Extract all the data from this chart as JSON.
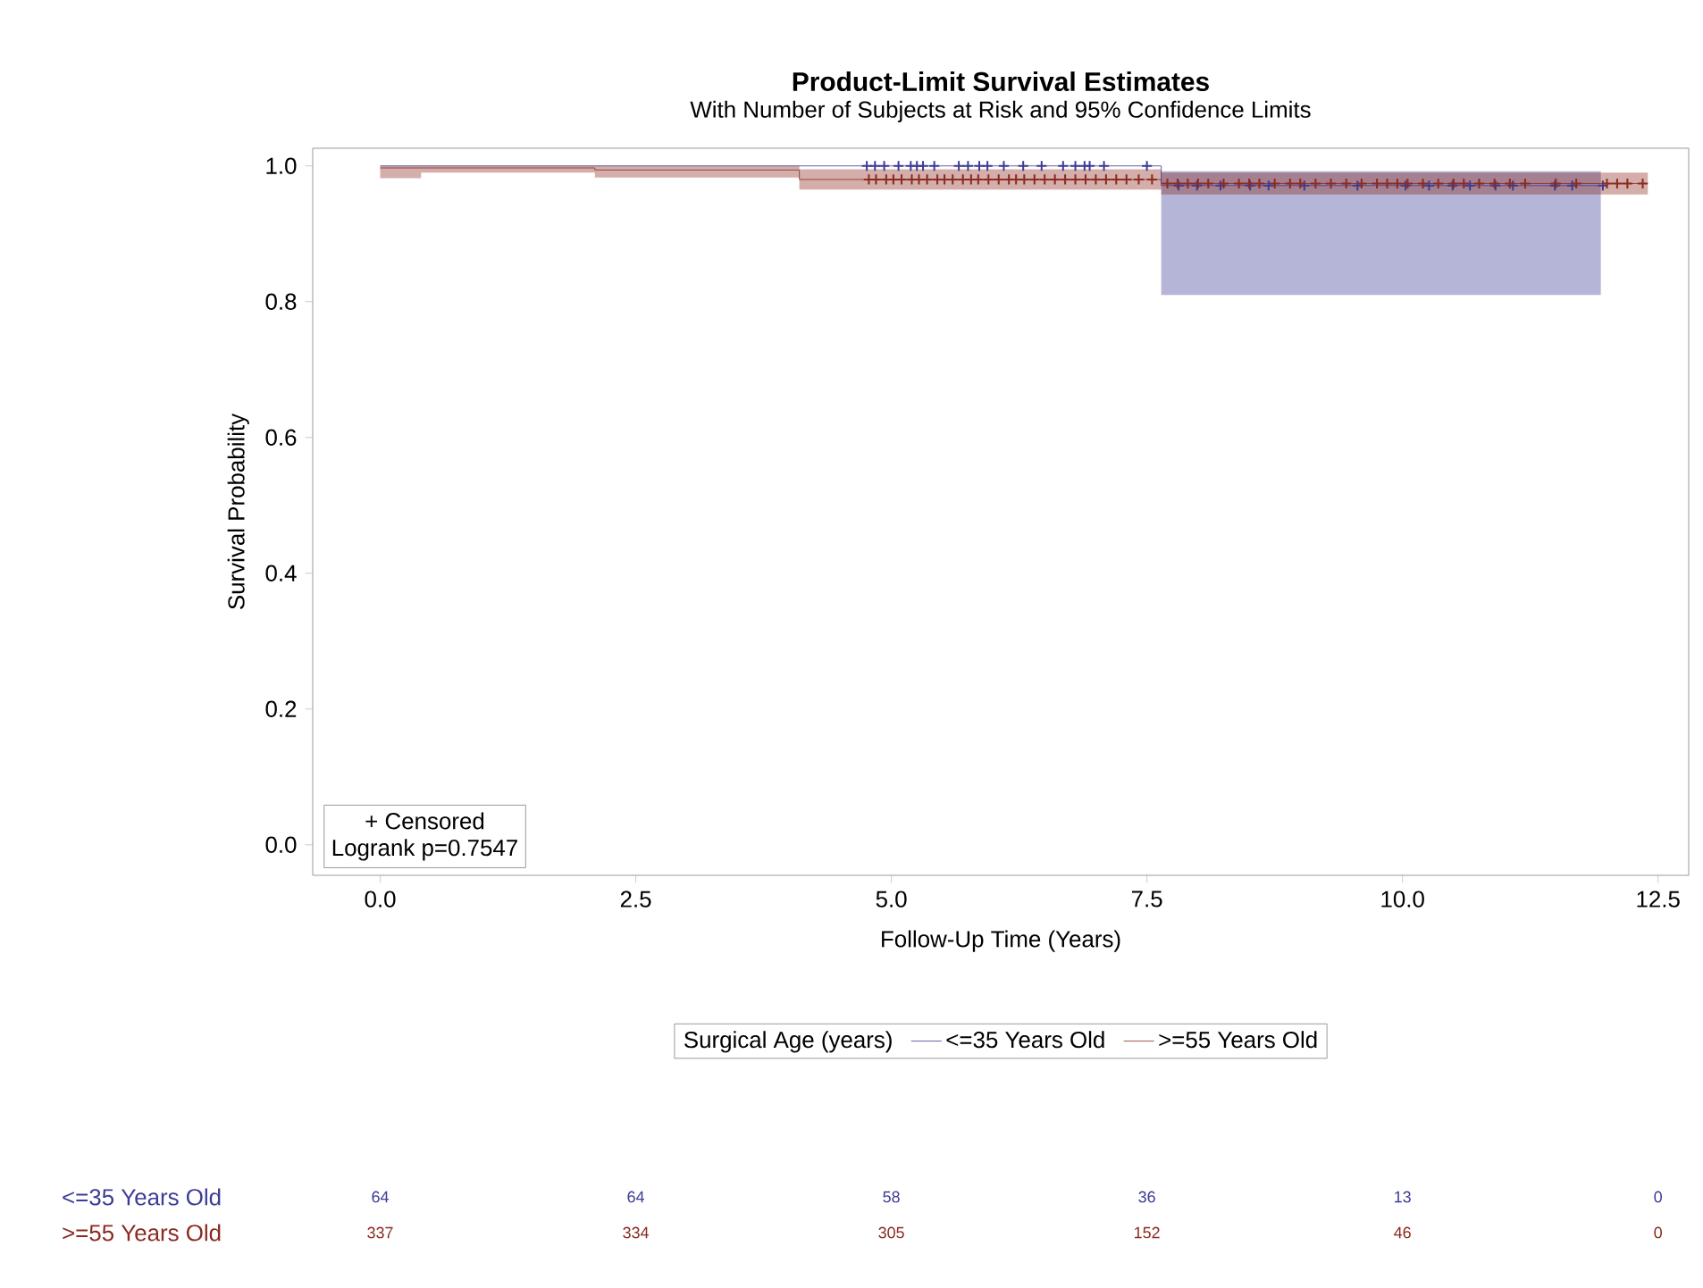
{
  "chart_data": {
    "type": "step",
    "title": "Product-Limit Survival Estimates",
    "subtitle": "With Number of Subjects at Risk and 95% Confidence Limits",
    "xlabel": "Follow-Up Time (Years)",
    "ylabel": "Survival Probability",
    "legend_title": "Surgical Age (years)",
    "legend": "bottom",
    "grid": false,
    "xlim": [
      -0.66,
      12.8
    ],
    "ylim": [
      -0.045,
      1.026
    ],
    "xticks": [
      {
        "value": 0,
        "label": "0.0"
      },
      {
        "value": 2.5,
        "label": "2.5"
      },
      {
        "value": 5,
        "label": "5.0"
      },
      {
        "value": 7.5,
        "label": "7.5"
      },
      {
        "value": 10,
        "label": "10.0"
      },
      {
        "value": 12.5,
        "label": "12.5"
      }
    ],
    "yticks": [
      {
        "value": 0,
        "label": "0.0"
      },
      {
        "value": 0.2,
        "label": "0.2"
      },
      {
        "value": 0.4,
        "label": "0.4"
      },
      {
        "value": 0.6,
        "label": "0.6"
      },
      {
        "value": 0.8,
        "label": "0.8"
      },
      {
        "value": 1,
        "label": "1.0"
      }
    ],
    "series": [
      {
        "name": "<=35 Years Old",
        "color": "#3c3c96",
        "x": [
          0,
          7.64,
          11.94
        ],
        "values": [
          1.0,
          0.971,
          0.971
        ],
        "lower": [
          1.0,
          0.81,
          0.81
        ],
        "upper": [
          1.0,
          0.992,
          0.992
        ]
      },
      {
        "name": ">=55 Years Old",
        "color": "#8b2a20",
        "x": [
          0,
          0.4,
          2.1,
          4.1,
          7.64,
          12.4
        ],
        "values": [
          0.997,
          0.997,
          0.994,
          0.98,
          0.974,
          0.974
        ],
        "lower": [
          0.982,
          0.99,
          0.983,
          0.965,
          0.958,
          0.958
        ],
        "upper": [
          1.0,
          1.0,
          1.0,
          0.995,
          0.99,
          0.99
        ]
      },
      {
        "type": "scatter",
        "marker": "cross",
        "color": "#3c3c96",
        "x": [
          4.76,
          4.84,
          4.93,
          5.07,
          5.19,
          5.25,
          5.31,
          5.42,
          5.66,
          5.75,
          5.86,
          5.94,
          6.1,
          6.29,
          6.47,
          6.68,
          6.8,
          6.89,
          6.94,
          7.08,
          7.5,
          7.81,
          7.99,
          8.22,
          8.51,
          8.69,
          9.04,
          9.56,
          10.03,
          10.26,
          10.49,
          10.66,
          10.91,
          11.08,
          11.49,
          11.66,
          11.96
        ],
        "values": [
          1,
          1,
          1,
          1,
          1,
          1,
          1,
          1,
          1,
          1,
          1,
          1,
          1,
          1,
          1,
          1,
          1,
          1,
          1,
          1,
          1,
          0.971,
          0.971,
          0.971,
          0.971,
          0.971,
          0.971,
          0.971,
          0.971,
          0.971,
          0.971,
          0.971,
          0.971,
          0.971,
          0.971,
          0.971,
          0.971
        ]
      },
      {
        "type": "scatter",
        "marker": "cross",
        "color": "#8b2a20",
        "x": [
          4.78,
          4.85,
          4.95,
          5.02,
          5.1,
          5.2,
          5.27,
          5.35,
          5.45,
          5.52,
          5.6,
          5.7,
          5.78,
          5.85,
          5.95,
          6.05,
          6.15,
          6.22,
          6.3,
          6.4,
          6.5,
          6.6,
          6.7,
          6.8,
          6.9,
          7.0,
          7.1,
          7.2,
          7.3,
          7.42,
          7.55,
          7.7,
          7.8,
          7.9,
          8.0,
          8.1,
          8.25,
          8.4,
          8.5,
          8.6,
          8.75,
          8.9,
          9.0,
          9.15,
          9.3,
          9.45,
          9.6,
          9.75,
          9.85,
          9.95,
          10.05,
          10.2,
          10.35,
          10.5,
          10.6,
          10.75,
          10.9,
          11.05,
          11.2,
          11.5,
          11.7,
          12.0,
          12.1,
          12.2,
          12.35
        ],
        "values": [
          0.98,
          0.98,
          0.98,
          0.98,
          0.98,
          0.98,
          0.98,
          0.98,
          0.98,
          0.98,
          0.98,
          0.98,
          0.98,
          0.98,
          0.98,
          0.98,
          0.98,
          0.98,
          0.98,
          0.98,
          0.98,
          0.98,
          0.98,
          0.98,
          0.98,
          0.98,
          0.98,
          0.98,
          0.98,
          0.98,
          0.98,
          0.974,
          0.974,
          0.974,
          0.974,
          0.974,
          0.974,
          0.974,
          0.974,
          0.974,
          0.974,
          0.974,
          0.974,
          0.974,
          0.974,
          0.974,
          0.974,
          0.974,
          0.974,
          0.974,
          0.974,
          0.974,
          0.974,
          0.974,
          0.974,
          0.974,
          0.974,
          0.974,
          0.974,
          0.974,
          0.974,
          0.974,
          0.974,
          0.974,
          0.974
        ]
      }
    ],
    "annotations": [
      "+ Censored",
      "Logrank p=0.7547",
      "<=35 Years Old",
      "64",
      "64",
      "58",
      "36",
      "13",
      "0",
      ">=55 Years Old",
      "337",
      "334",
      "305",
      "152",
      "46",
      "0"
    ]
  }
}
